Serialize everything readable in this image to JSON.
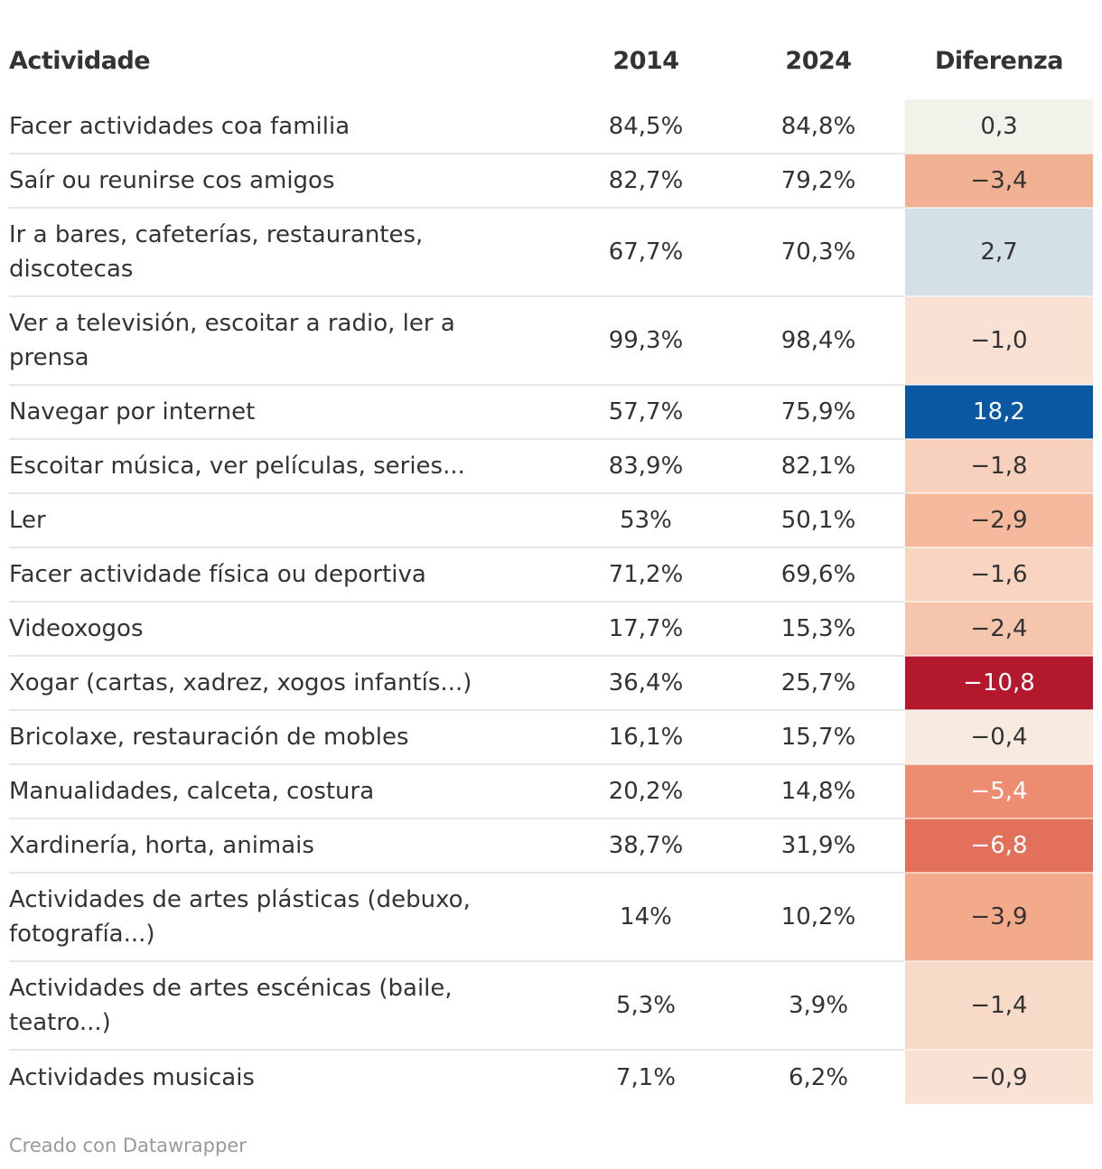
{
  "chart_data": {
    "type": "table",
    "columns": [
      "Actividade",
      "2014",
      "2024",
      "Diferenza"
    ],
    "rows": [
      {
        "activity": "Facer actividades coa familia",
        "y2014": "84,5%",
        "y2024": "84,8%",
        "diff": "0,3",
        "diff_value": 0.3,
        "fill": "#f2f1ea",
        "text_color": "#333333"
      },
      {
        "activity": "Saír ou reunirse cos amigos",
        "y2014": "82,7%",
        "y2024": "79,2%",
        "diff": "−3,4",
        "diff_value": -3.4,
        "fill": "#f3b193",
        "text_color": "#333333"
      },
      {
        "activity": "Ir a bares, cafeterías, restaurantes, discotecas",
        "y2014": "67,7%",
        "y2024": "70,3%",
        "diff": "2,7",
        "diff_value": 2.7,
        "fill": "#d3e0e6",
        "text_color": "#333333"
      },
      {
        "activity": "Ver a televisión, escoitar a radio, ler a prensa",
        "y2014": "99,3%",
        "y2024": "98,4%",
        "diff": "−1,0",
        "diff_value": -1.0,
        "fill": "#f9e1d3",
        "text_color": "#333333"
      },
      {
        "activity": "Navegar por internet",
        "y2014": "57,7%",
        "y2024": "75,9%",
        "diff": "18,2",
        "diff_value": 18.2,
        "fill": "#0b58a2",
        "text_color": "#ffffff"
      },
      {
        "activity": "Escoitar música, ver películas, series...",
        "y2014": "83,9%",
        "y2024": "82,1%",
        "diff": "−1,8",
        "diff_value": -1.8,
        "fill": "#f7d1bd",
        "text_color": "#333333"
      },
      {
        "activity": "Ler",
        "y2014": "53%",
        "y2024": "50,1%",
        "diff": "−2,9",
        "diff_value": -2.9,
        "fill": "#f5b99d",
        "text_color": "#333333"
      },
      {
        "activity": "Facer actividade física ou deportiva",
        "y2014": "71,2%",
        "y2024": "69,6%",
        "diff": "−1,6",
        "diff_value": -1.6,
        "fill": "#f8d4c1",
        "text_color": "#333333"
      },
      {
        "activity": "Videoxogos",
        "y2014": "17,7%",
        "y2024": "15,3%",
        "diff": "−2,4",
        "diff_value": -2.4,
        "fill": "#f6c5ad",
        "text_color": "#333333"
      },
      {
        "activity": "Xogar (cartas, xadrez, xogos infantís...)",
        "y2014": "36,4%",
        "y2024": "25,7%",
        "diff": "−10,8",
        "diff_value": -10.8,
        "fill": "#b4182c",
        "text_color": "#ffffff"
      },
      {
        "activity": "Bricolaxe, restauración de mobles",
        "y2014": "16,1%",
        "y2024": "15,7%",
        "diff": "−0,4",
        "diff_value": -0.4,
        "fill": "#f7ebe0",
        "text_color": "#333333"
      },
      {
        "activity": "Manualidades, calceta, costura",
        "y2014": "20,2%",
        "y2024": "14,8%",
        "diff": "−5,4",
        "diff_value": -5.4,
        "fill": "#ec8c71",
        "text_color": "#ffffff"
      },
      {
        "activity": "Xardinería, horta, animais",
        "y2014": "38,7%",
        "y2024": "31,9%",
        "diff": "−6,8",
        "diff_value": -6.8,
        "fill": "#e2705a",
        "text_color": "#ffffff"
      },
      {
        "activity": "Actividades de artes plásticas (debuxo, fotografía...)",
        "y2014": "14%",
        "y2024": "10,2%",
        "diff": "−3,9",
        "diff_value": -3.9,
        "fill": "#f2aa8b",
        "text_color": "#333333"
      },
      {
        "activity": "Actividades de artes escénicas (baile, teatro...)",
        "y2014": "5,3%",
        "y2024": "3,9%",
        "diff": "−1,4",
        "diff_value": -1.4,
        "fill": "#f8dac8",
        "text_color": "#333333"
      },
      {
        "activity": "Actividades musicais",
        "y2014": "7,1%",
        "y2024": "6,2%",
        "diff": "−0,9",
        "diff_value": -0.9,
        "fill": "#f9e2d4",
        "text_color": "#333333"
      }
    ]
  },
  "footer": {
    "credit": "Creado con Datawrapper"
  }
}
